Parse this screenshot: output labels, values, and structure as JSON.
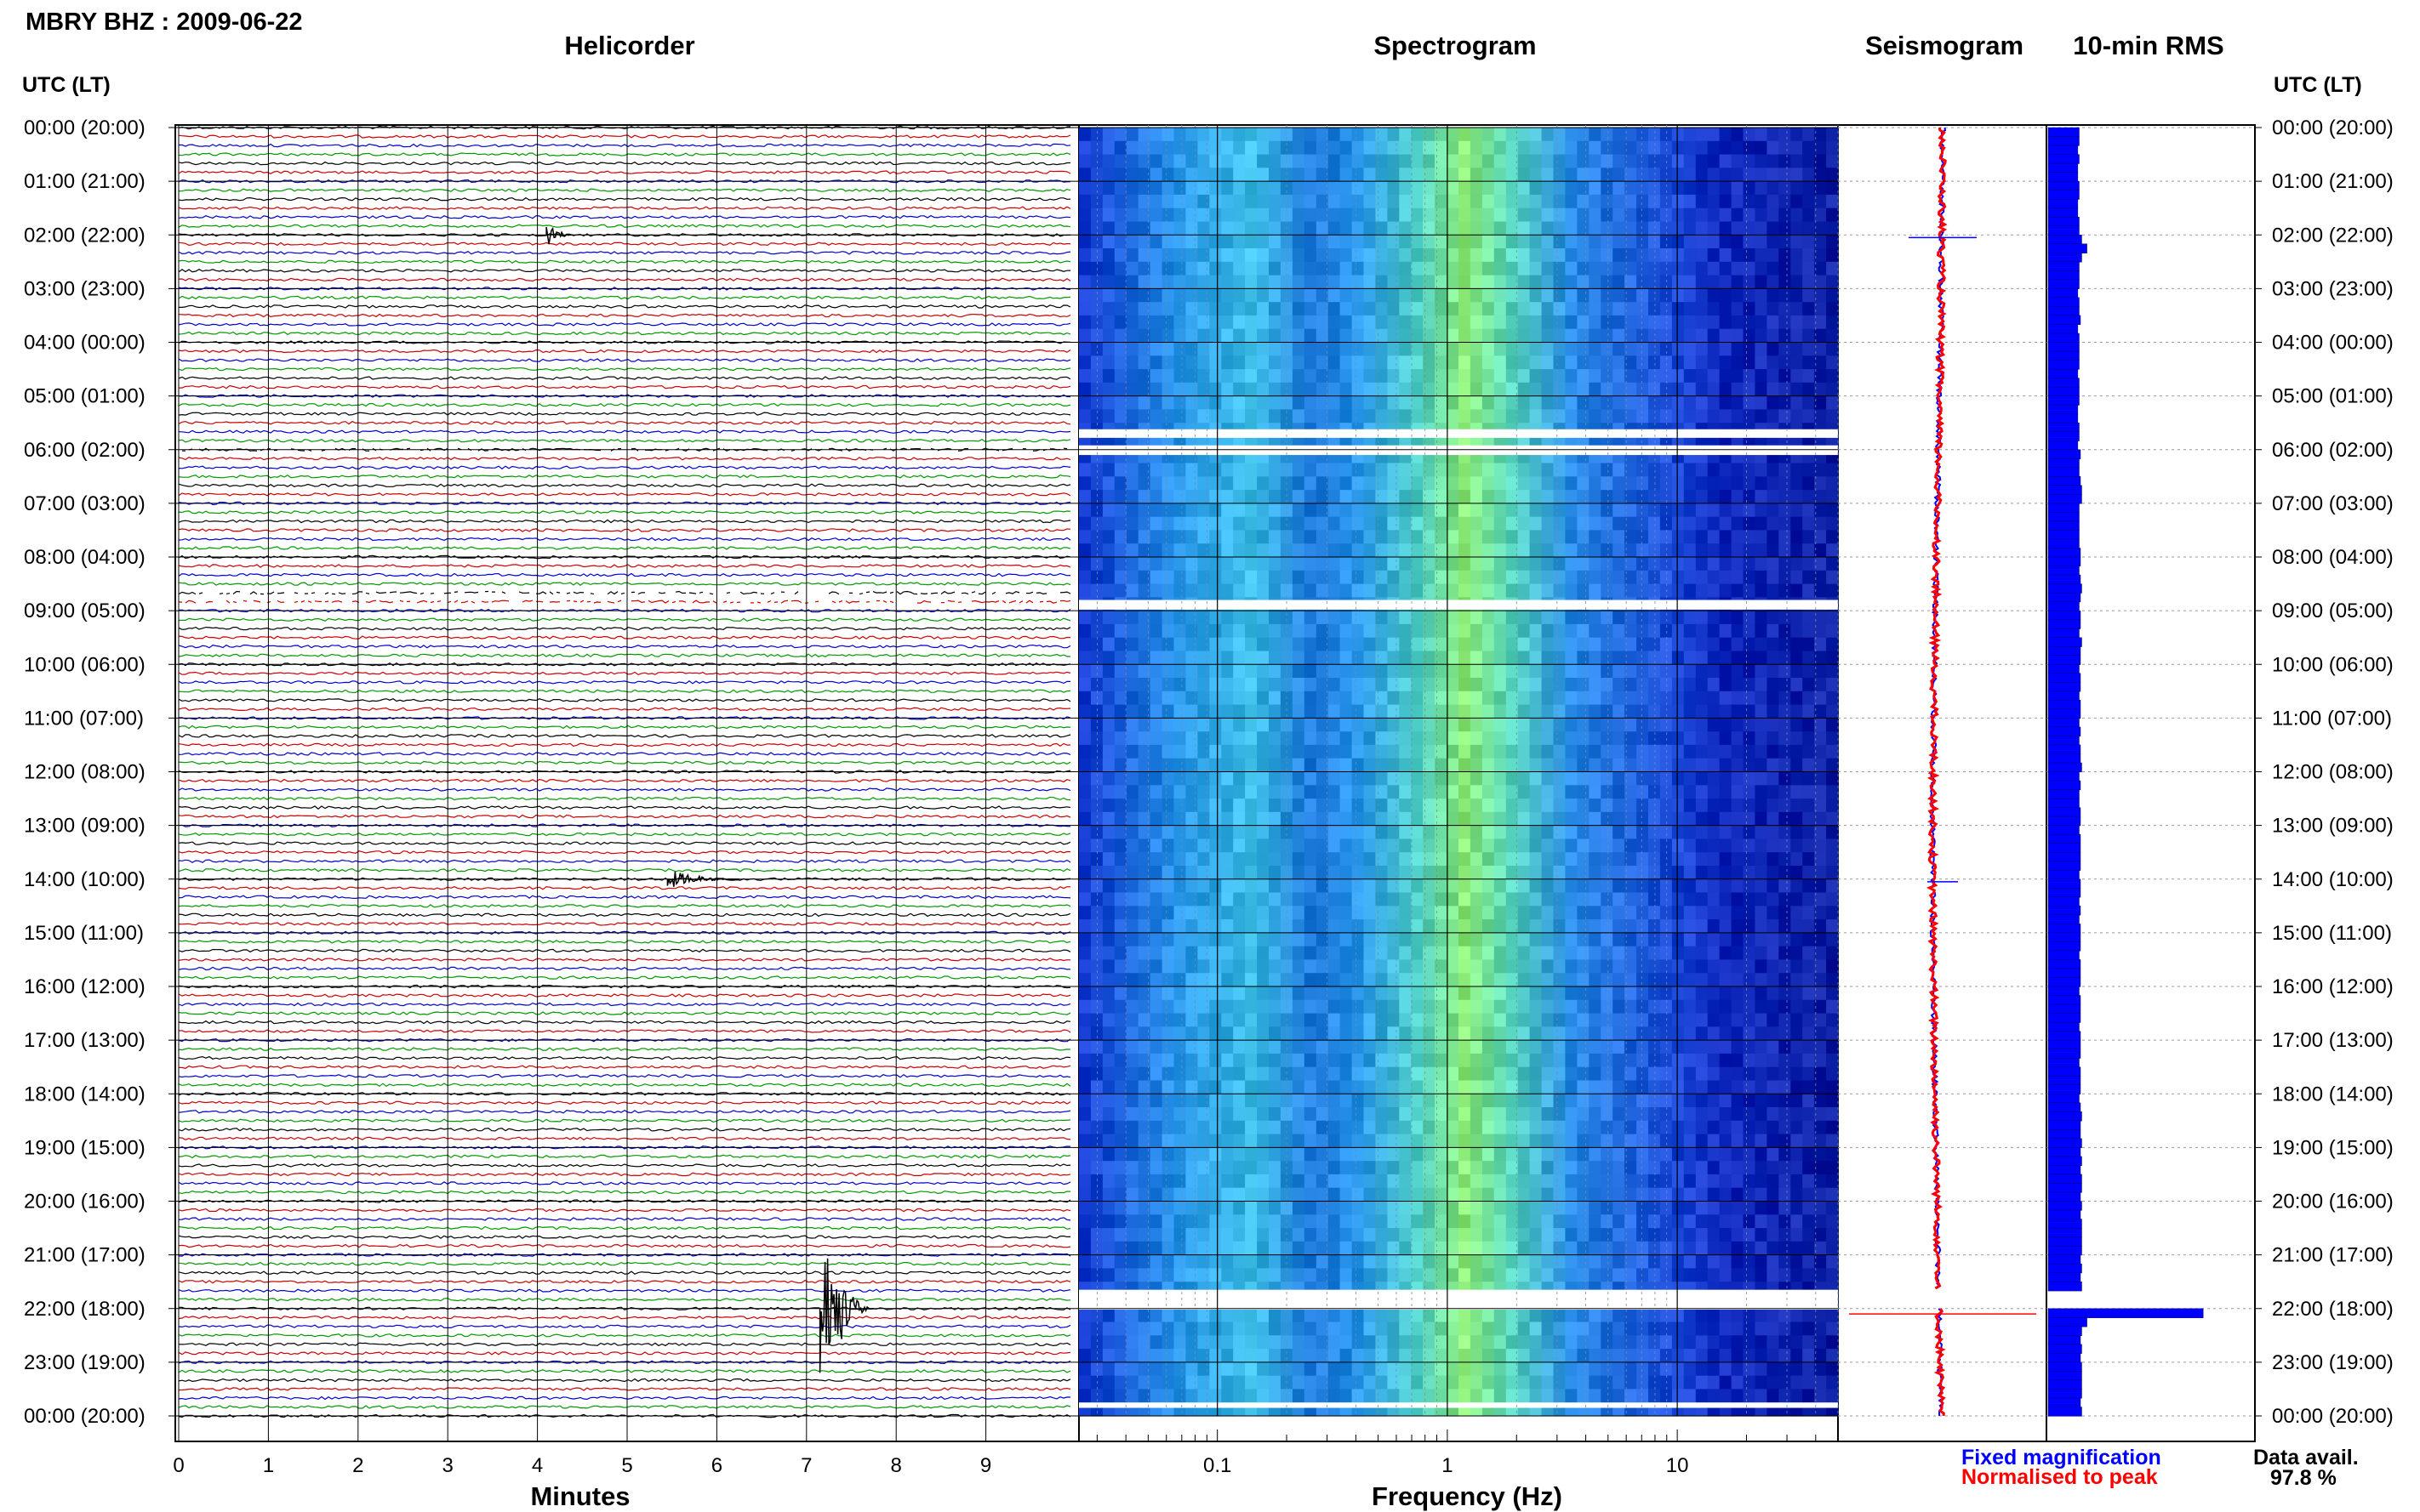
{
  "header": {
    "title": "MBRY BHZ : 2009-06-22"
  },
  "panels": {
    "helicorder": "Helicorder",
    "spectrogram": "Spectrogram",
    "seismogram": "Seismogram",
    "rms": "10-min RMS"
  },
  "utc_label_left": "UTC (LT)",
  "utc_label_right": "UTC (LT)",
  "legend": {
    "fixed": "Fixed magnification",
    "normalised": "Normalised to peak"
  },
  "availability": {
    "label": "Data avail.",
    "value": "97.8 %"
  },
  "colors": {
    "trace_cycle": [
      "#000000",
      "#cc0000",
      "#0000cc",
      "#009900"
    ],
    "spectrogram_bg": "#0a1ea0",
    "rms_bar": "#0000ff",
    "seismogram_fixed": "#0000ff",
    "seismogram_normalised": "#ff0000"
  },
  "chart_data": {
    "type": "helicorder",
    "time_labels": [
      "00:00 (20:00)",
      "01:00 (21:00)",
      "02:00 (22:00)",
      "03:00 (23:00)",
      "04:00 (00:00)",
      "05:00 (01:00)",
      "06:00 (02:00)",
      "07:00 (03:00)",
      "08:00 (04:00)",
      "09:00 (05:00)",
      "10:00 (06:00)",
      "11:00 (07:00)",
      "12:00 (08:00)",
      "13:00 (09:00)",
      "14:00 (10:00)",
      "15:00 (11:00)",
      "16:00 (12:00)",
      "17:00 (13:00)",
      "18:00 (14:00)",
      "19:00 (15:00)",
      "20:00 (16:00)",
      "21:00 (17:00)",
      "22:00 (18:00)",
      "23:00 (19:00)",
      "00:00 (20:00)"
    ],
    "helicorder": {
      "xlabel": "Minutes",
      "xlim": [
        0,
        10
      ],
      "xticks": [
        0,
        1,
        2,
        3,
        4,
        5,
        6,
        7,
        8,
        9
      ],
      "lines_per_hour": 6,
      "events": [
        {
          "hour": 2.0,
          "minute": 4.1,
          "amplitude": 0.5,
          "duration": 0.3
        },
        {
          "hour": 14.0,
          "minute": 5.45,
          "amplitude": 0.35,
          "duration": 0.8
        },
        {
          "hour": 22.0,
          "minute": 7.15,
          "amplitude": 3.2,
          "duration": 0.6
        }
      ],
      "gaps_hours": [
        5.95,
        8.75
      ]
    },
    "spectrogram": {
      "xlabel": "Frequency (Hz)",
      "xscale": "log",
      "xlim": [
        0.025,
        50
      ],
      "xtick_labels": [
        {
          "v": 0.1,
          "t": "0.1"
        },
        {
          "v": 1,
          "t": "1"
        },
        {
          "v": 10,
          "t": "10"
        }
      ],
      "gaps_hours": [
        [
          5.62,
          5.78
        ],
        [
          5.92,
          6.1
        ],
        [
          8.8,
          8.98
        ],
        [
          21.65,
          22.02
        ],
        [
          23.75,
          23.85
        ]
      ]
    },
    "rms": {
      "values": [
        2.4,
        2.4,
        2.3,
        2.4,
        2.3,
        2.3,
        2.4,
        2.4,
        2.3,
        2.3,
        2.4,
        2.4,
        2.6,
        3.0,
        2.6,
        2.4,
        2.4,
        2.4,
        2.3,
        2.4,
        2.4,
        2.5,
        2.3,
        2.4,
        2.4,
        2.4,
        2.4,
        2.3,
        2.4,
        2.4,
        2.4,
        2.3,
        2.3,
        2.4,
        2.4,
        2.3,
        2.5,
        2.4,
        2.4,
        2.5,
        2.6,
        2.6,
        2.4,
        2.4,
        2.4,
        2.4,
        2.4,
        2.5,
        2.5,
        2.4,
        2.5,
        2.6,
        2.5,
        2.4,
        2.5,
        2.5,
        2.4,
        2.6,
        2.5,
        2.5,
        2.4,
        2.5,
        2.5,
        2.4,
        2.5,
        2.5,
        2.4,
        2.5,
        2.4,
        2.5,
        2.5,
        2.6,
        2.4,
        2.5,
        2.4,
        2.4,
        2.5,
        2.5,
        2.4,
        2.5,
        2.5,
        2.5,
        2.5,
        2.4,
        2.5,
        2.5,
        2.4,
        2.5,
        2.4,
        2.5,
        2.5,
        2.5,
        2.4,
        2.5,
        2.5,
        2.5,
        2.4,
        2.5,
        2.5,
        2.5,
        2.4,
        2.5,
        2.5,
        2.5,
        2.4,
        2.5,
        2.5,
        2.5,
        2.4,
        2.5,
        2.6,
        2.5,
        2.5,
        2.6,
        2.5,
        2.6,
        2.5,
        2.6,
        2.6,
        2.5,
        2.6,
        2.5,
        2.6,
        2.6,
        2.6,
        2.6,
        2.5,
        2.6,
        2.5,
        2.6,
        0,
        0,
        12.0,
        3.0,
        2.6,
        2.5,
        2.6,
        2.5,
        2.6,
        2.6,
        2.6,
        2.6,
        2.5,
        2.6
      ],
      "max": 12
    },
    "seismogram": {
      "fixed_spikes_hours": [
        2.05,
        14.05,
        22.1
      ],
      "drift": [
        0,
        -0.1,
        -0.3,
        -0.5,
        -0.6,
        -0.5,
        -0.3,
        -0.1
      ]
    }
  }
}
